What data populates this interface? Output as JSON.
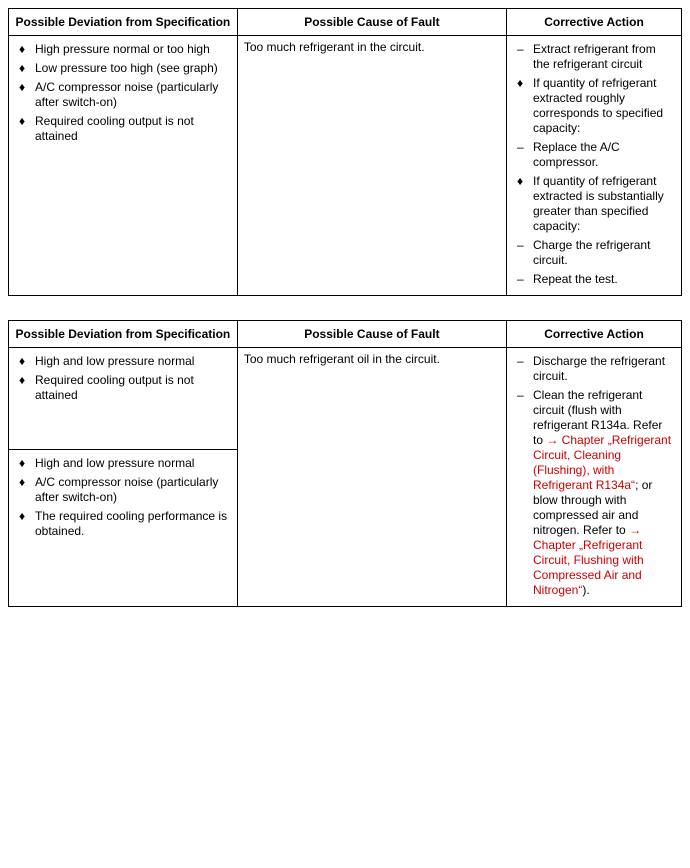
{
  "headers": {
    "deviation": "Possible Deviation from Specification",
    "cause": "Possible Cause of Fault",
    "action": "Corrective Action"
  },
  "table1": {
    "row1": {
      "dev": [
        "High pressure normal or too high",
        "Low pressure too high (see graph)",
        "A/C compressor noise (particularly after switch-on)",
        "Required cooling output is not attained"
      ],
      "cause": "Too much refrigerant in the circuit.",
      "act": [
        {
          "m": "–",
          "t": "Extract refrigerant from the refrigerant circuit"
        },
        {
          "m": "♦",
          "t": "If quantity of refrigerant extracted roughly corresponds to specified capacity:"
        },
        {
          "m": "–",
          "t": "Replace the A/C compressor."
        },
        {
          "m": "♦",
          "t": "If quantity of refrigerant extracted is substantially greater than specified capacity:"
        },
        {
          "m": "–",
          "t": "Charge the refrigerant circuit."
        },
        {
          "m": "–",
          "t": "Repeat the test."
        }
      ]
    }
  },
  "table2": {
    "row1": {
      "dev": [
        "High and low pressure normal",
        "Required cooling output is not attained"
      ],
      "cause": "Too much refrigerant oil in the circuit.",
      "act": [
        {
          "m": "–",
          "t": "Discharge the refrigerant circuit."
        },
        {
          "m": "–",
          "parts": [
            {
              "txt": "Clean the refrigerant circuit (flush with refrigerant R134a. Refer to "
            },
            {
              "txt": "→",
              "cls": "arrow"
            },
            {
              "txt": " Chapter „Refrigerant Circuit, Cleaning (Flushing), with Refrigerant R134a“",
              "cls": "link"
            },
            {
              "txt": "; or blow through with compressed air and nitrogen. Refer to "
            },
            {
              "txt": "→",
              "cls": "arrow"
            },
            {
              "txt": " Chapter „Refrigerant Circuit, Flushing with Compressed Air and Nitrogen“",
              "cls": "link"
            },
            {
              "txt": ")."
            }
          ]
        }
      ]
    },
    "row2": {
      "dev": [
        "High and low pressure normal",
        "A/C compressor noise (particularly after switch-on)",
        "The required cooling performance is obtained."
      ]
    }
  }
}
